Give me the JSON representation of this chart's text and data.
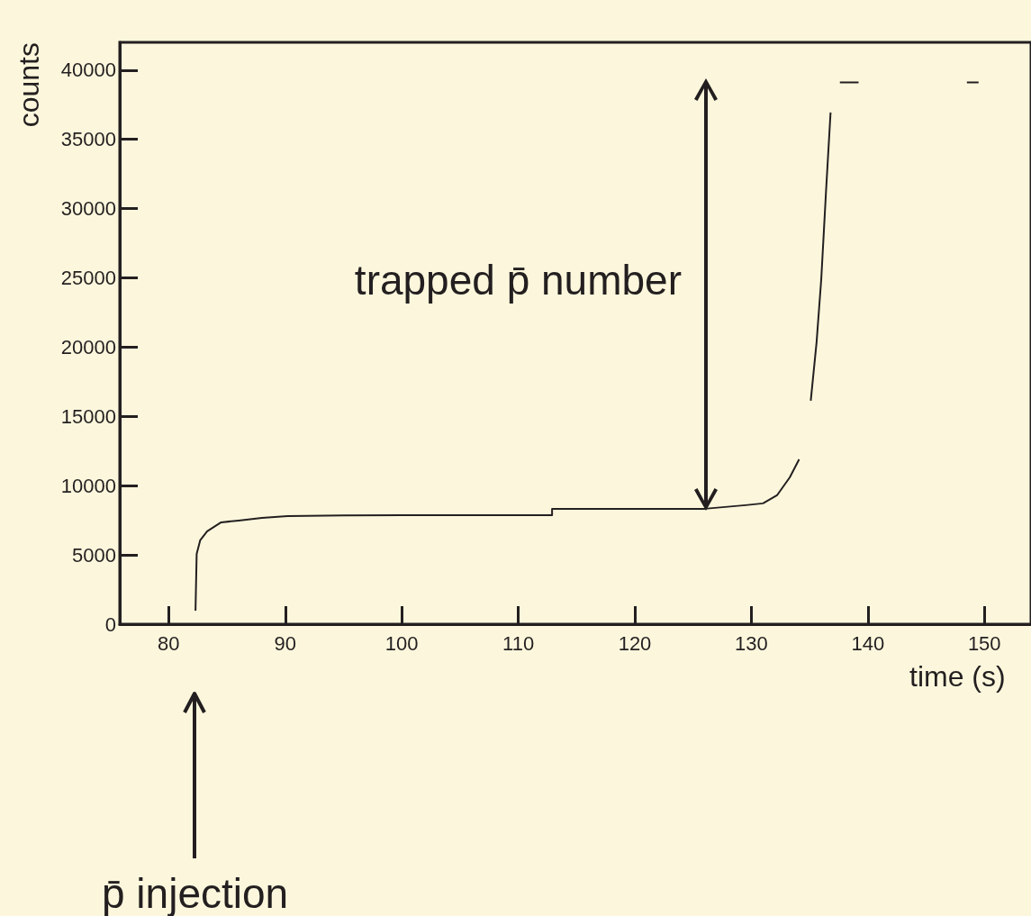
{
  "chart_data": {
    "type": "line",
    "xlabel": "time (s)",
    "ylabel": "counts",
    "color": "#231f20",
    "marker": "none",
    "x": [
      82.3,
      82.4,
      82.7,
      83.3,
      84.5,
      86,
      88,
      90.2,
      95,
      100,
      105,
      110,
      112.9,
      112.9,
      120,
      126,
      129.5,
      131,
      132.2,
      133.3,
      134.1,
      134.6,
      135.1,
      135.6,
      136,
      136.4,
      136.8,
      137.2,
      137.6,
      139.2,
      144,
      148.5,
      149.5
    ],
    "values": [
      980,
      5070,
      6050,
      6700,
      7350,
      7480,
      7670,
      7800,
      7850,
      7870,
      7870,
      7870,
      7870,
      8330,
      8330,
      8330,
      8590,
      8720,
      9300,
      10600,
      11900,
      null,
      16130,
      20360,
      24900,
      31090,
      36940,
      null,
      39100,
      39100,
      null,
      39100,
      39100
    ],
    "xlim": [
      75.8,
      154
    ],
    "ylim": [
      0,
      42000
    ],
    "xticks": [
      80,
      90,
      100,
      110,
      120,
      130,
      140,
      150
    ],
    "yticks": [
      0,
      5000,
      10000,
      15000,
      20000,
      25000,
      30000,
      35000,
      40000
    ],
    "annotations": [
      "trapped p̄ number",
      "p̄ injection"
    ]
  }
}
